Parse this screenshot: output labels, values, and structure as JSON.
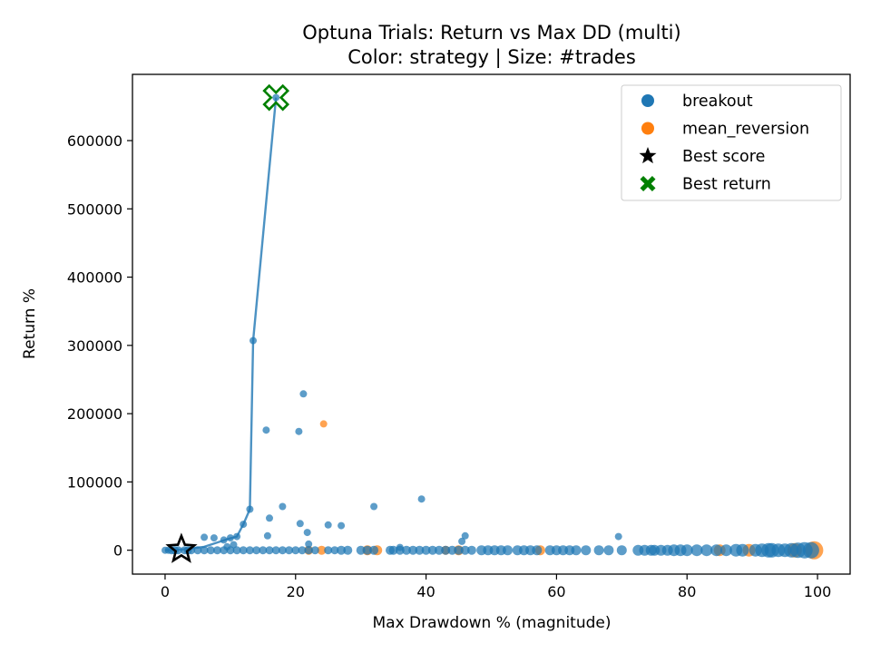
{
  "chart_data": {
    "type": "scatter",
    "title": "Optuna Trials: Return vs Max DD (multi)",
    "subtitle": "Color: strategy | Size: #trades",
    "xlabel": "Max Drawdown % (magnitude)",
    "ylabel": "Return %",
    "xlim": [
      -5,
      105
    ],
    "ylim": [
      -35000,
      697000
    ],
    "x_ticks": [
      0,
      20,
      40,
      60,
      80,
      100
    ],
    "y_ticks": [
      0,
      100000,
      200000,
      300000,
      400000,
      500000,
      600000
    ],
    "grid": false,
    "legend_position": "top-right",
    "colors": {
      "breakout": "#1f77b4",
      "mean_reversion": "#ff7f0e",
      "best_score": "#000000",
      "best_return": "#008000"
    },
    "legend": [
      {
        "label": "breakout",
        "marker": "circle",
        "color": "#1f77b4"
      },
      {
        "label": "mean_reversion",
        "marker": "circle",
        "color": "#ff7f0e"
      },
      {
        "label": "Best score",
        "marker": "star",
        "color": "#000000"
      },
      {
        "label": "Best return",
        "marker": "x-filled",
        "color": "#008000"
      }
    ],
    "frontier": {
      "x": [
        0,
        2.5,
        6,
        9.5,
        11,
        12,
        13,
        13.5,
        17
      ],
      "y": [
        0,
        1000,
        5000,
        16000,
        20000,
        38000,
        60000,
        307000,
        663000
      ]
    },
    "series": [
      {
        "name": "breakout",
        "points": [
          {
            "x": 0,
            "y": 0,
            "trades": 8
          },
          {
            "x": 0.5,
            "y": 0,
            "trades": 8
          },
          {
            "x": 1,
            "y": 0,
            "trades": 9
          },
          {
            "x": 1.5,
            "y": 0,
            "trades": 9
          },
          {
            "x": 2,
            "y": 0,
            "trades": 9
          },
          {
            "x": 3,
            "y": 0,
            "trades": 9
          },
          {
            "x": 3.5,
            "y": 0,
            "trades": 9
          },
          {
            "x": 4,
            "y": 0,
            "trades": 9
          },
          {
            "x": 5,
            "y": 0,
            "trades": 9
          },
          {
            "x": 6,
            "y": 0,
            "trades": 9
          },
          {
            "x": 7,
            "y": 0,
            "trades": 9
          },
          {
            "x": 8,
            "y": 0,
            "trades": 9
          },
          {
            "x": 9,
            "y": 0,
            "trades": 9
          },
          {
            "x": 10,
            "y": 0,
            "trades": 9
          },
          {
            "x": 11,
            "y": 0,
            "trades": 9
          },
          {
            "x": 12,
            "y": 0,
            "trades": 9
          },
          {
            "x": 13,
            "y": 0,
            "trades": 9
          },
          {
            "x": 14,
            "y": 0,
            "trades": 9
          },
          {
            "x": 15,
            "y": 0,
            "trades": 9
          },
          {
            "x": 16,
            "y": 0,
            "trades": 9
          },
          {
            "x": 17,
            "y": 0,
            "trades": 9
          },
          {
            "x": 18,
            "y": 0,
            "trades": 9
          },
          {
            "x": 19,
            "y": 0,
            "trades": 9
          },
          {
            "x": 20,
            "y": 0,
            "trades": 9
          },
          {
            "x": 21,
            "y": 0,
            "trades": 9
          },
          {
            "x": 22,
            "y": 0,
            "trades": 9
          },
          {
            "x": 23,
            "y": 0,
            "trades": 9
          },
          {
            "x": 25,
            "y": 0,
            "trades": 9
          },
          {
            "x": 26,
            "y": 0,
            "trades": 9
          },
          {
            "x": 27,
            "y": 0,
            "trades": 10
          },
          {
            "x": 28,
            "y": 0,
            "trades": 10
          },
          {
            "x": 30,
            "y": 0,
            "trades": 10
          },
          {
            "x": 31,
            "y": 0,
            "trades": 10
          },
          {
            "x": 32,
            "y": 0,
            "trades": 10
          },
          {
            "x": 34.5,
            "y": 0,
            "trades": 10
          },
          {
            "x": 35,
            "y": 0,
            "trades": 10
          },
          {
            "x": 36,
            "y": 0,
            "trades": 10
          },
          {
            "x": 37,
            "y": 0,
            "trades": 10
          },
          {
            "x": 38,
            "y": 0,
            "trades": 10
          },
          {
            "x": 39,
            "y": 0,
            "trades": 10
          },
          {
            "x": 40,
            "y": 0,
            "trades": 10
          },
          {
            "x": 41,
            "y": 0,
            "trades": 10
          },
          {
            "x": 42,
            "y": 0,
            "trades": 10
          },
          {
            "x": 43,
            "y": 0,
            "trades": 10
          },
          {
            "x": 44,
            "y": 0,
            "trades": 10
          },
          {
            "x": 45,
            "y": 0,
            "trades": 10
          },
          {
            "x": 46,
            "y": 0,
            "trades": 10
          },
          {
            "x": 47,
            "y": 0,
            "trades": 10
          },
          {
            "x": 48.5,
            "y": 0,
            "trades": 11
          },
          {
            "x": 49.5,
            "y": 0,
            "trades": 11
          },
          {
            "x": 50.5,
            "y": 0,
            "trades": 11
          },
          {
            "x": 51.5,
            "y": 0,
            "trades": 11
          },
          {
            "x": 52.5,
            "y": 0,
            "trades": 11
          },
          {
            "x": 54,
            "y": 0,
            "trades": 11
          },
          {
            "x": 55,
            "y": 0,
            "trades": 11
          },
          {
            "x": 56,
            "y": 0,
            "trades": 11
          },
          {
            "x": 57,
            "y": 0,
            "trades": 11
          },
          {
            "x": 59,
            "y": 0,
            "trades": 11
          },
          {
            "x": 60,
            "y": 0,
            "trades": 11
          },
          {
            "x": 61,
            "y": 0,
            "trades": 11
          },
          {
            "x": 62,
            "y": 0,
            "trades": 11
          },
          {
            "x": 63,
            "y": 0,
            "trades": 11
          },
          {
            "x": 64.5,
            "y": 0,
            "trades": 11
          },
          {
            "x": 66.5,
            "y": 0,
            "trades": 11
          },
          {
            "x": 68,
            "y": 0,
            "trades": 11
          },
          {
            "x": 70,
            "y": 0,
            "trades": 11
          },
          {
            "x": 72.5,
            "y": 0,
            "trades": 12
          },
          {
            "x": 73.5,
            "y": 0,
            "trades": 12
          },
          {
            "x": 74.5,
            "y": 0,
            "trades": 12
          },
          {
            "x": 75,
            "y": 0,
            "trades": 12
          },
          {
            "x": 76,
            "y": 0,
            "trades": 12
          },
          {
            "x": 77,
            "y": 0,
            "trades": 12
          },
          {
            "x": 78,
            "y": 0,
            "trades": 13
          },
          {
            "x": 79,
            "y": 0,
            "trades": 13
          },
          {
            "x": 80,
            "y": 0,
            "trades": 13
          },
          {
            "x": 81.5,
            "y": 0,
            "trades": 13
          },
          {
            "x": 83,
            "y": 0,
            "trades": 13
          },
          {
            "x": 84.5,
            "y": 0,
            "trades": 13
          },
          {
            "x": 86,
            "y": 0,
            "trades": 13
          },
          {
            "x": 87.5,
            "y": 0,
            "trades": 14
          },
          {
            "x": 88.5,
            "y": 0,
            "trades": 14
          },
          {
            "x": 90.5,
            "y": 0,
            "trades": 14
          },
          {
            "x": 91.5,
            "y": 0,
            "trades": 15
          },
          {
            "x": 92.5,
            "y": 0,
            "trades": 16
          },
          {
            "x": 93,
            "y": 0,
            "trades": 16
          },
          {
            "x": 94,
            "y": 0,
            "trades": 15
          },
          {
            "x": 95,
            "y": 0,
            "trades": 15
          },
          {
            "x": 96,
            "y": 0,
            "trades": 16
          },
          {
            "x": 97,
            "y": 0,
            "trades": 17
          },
          {
            "x": 98,
            "y": 0,
            "trades": 18
          },
          {
            "x": 99,
            "y": 0,
            "trades": 18
          },
          {
            "x": 6,
            "y": 19000,
            "trades": 8
          },
          {
            "x": 7.5,
            "y": 18000,
            "trades": 8
          },
          {
            "x": 9,
            "y": 15000,
            "trades": 8
          },
          {
            "x": 10,
            "y": 18000,
            "trades": 8
          },
          {
            "x": 11,
            "y": 20000,
            "trades": 8
          },
          {
            "x": 12,
            "y": 38000,
            "trades": 8
          },
          {
            "x": 13,
            "y": 60000,
            "trades": 8
          },
          {
            "x": 13.5,
            "y": 307000,
            "trades": 8
          },
          {
            "x": 15.5,
            "y": 176000,
            "trades": 8
          },
          {
            "x": 15.7,
            "y": 21000,
            "trades": 8
          },
          {
            "x": 16,
            "y": 47000,
            "trades": 8
          },
          {
            "x": 17,
            "y": 663000,
            "trades": 8
          },
          {
            "x": 18,
            "y": 64000,
            "trades": 8
          },
          {
            "x": 20.5,
            "y": 174000,
            "trades": 8
          },
          {
            "x": 20.7,
            "y": 39000,
            "trades": 8
          },
          {
            "x": 21.2,
            "y": 229000,
            "trades": 8
          },
          {
            "x": 21.8,
            "y": 26000,
            "trades": 8
          },
          {
            "x": 22,
            "y": 9000,
            "trades": 8
          },
          {
            "x": 25,
            "y": 37000,
            "trades": 8
          },
          {
            "x": 27,
            "y": 36000,
            "trades": 8
          },
          {
            "x": 32,
            "y": 64000,
            "trades": 8
          },
          {
            "x": 36,
            "y": 4000,
            "trades": 8
          },
          {
            "x": 39.3,
            "y": 75000,
            "trades": 8
          },
          {
            "x": 45.5,
            "y": 13000,
            "trades": 8
          },
          {
            "x": 46,
            "y": 21000,
            "trades": 8
          },
          {
            "x": 69.5,
            "y": 20000,
            "trades": 8
          },
          {
            "x": 10.5,
            "y": 8000,
            "trades": 8
          },
          {
            "x": 9.5,
            "y": 5000,
            "trades": 8
          }
        ]
      },
      {
        "name": "mean_reversion",
        "points": [
          {
            "x": 22,
            "y": 0,
            "trades": 10
          },
          {
            "x": 24,
            "y": 0,
            "trades": 10
          },
          {
            "x": 31,
            "y": 0,
            "trades": 11
          },
          {
            "x": 32.5,
            "y": 0,
            "trades": 11
          },
          {
            "x": 43,
            "y": 0,
            "trades": 10
          },
          {
            "x": 45,
            "y": 0,
            "trades": 11
          },
          {
            "x": 57.5,
            "y": 0,
            "trades": 11
          },
          {
            "x": 85,
            "y": 0,
            "trades": 13
          },
          {
            "x": 89.5,
            "y": 0,
            "trades": 14
          },
          {
            "x": 96.5,
            "y": 0,
            "trades": 16
          },
          {
            "x": 99.5,
            "y": 0,
            "trades": 20
          },
          {
            "x": 24.3,
            "y": 185000,
            "trades": 8
          }
        ]
      }
    ],
    "best_score": {
      "x": 2.5,
      "y": 1000
    },
    "best_return": {
      "x": 17,
      "y": 663000
    }
  }
}
